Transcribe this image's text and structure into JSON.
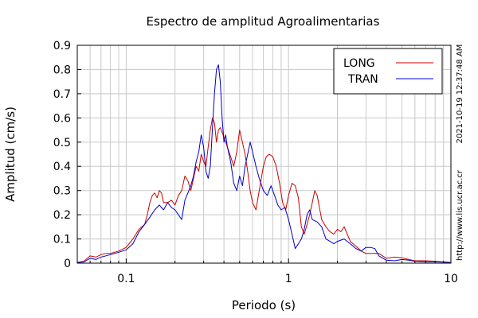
{
  "chart_data": {
    "type": "line",
    "title": "Espectro de amplitud Agroalimentarias",
    "xlabel": "Periodo (s)",
    "ylabel": "Amplitud (cm/s)",
    "x_scale": "log",
    "xlim": [
      0.05,
      10
    ],
    "ylim": [
      0,
      0.9
    ],
    "x_ticks": [
      {
        "v": 0.1,
        "label": "0.1"
      },
      {
        "v": 1,
        "label": "1"
      },
      {
        "v": 10,
        "label": "10"
      }
    ],
    "y_ticks": [
      {
        "v": 0,
        "label": "0"
      },
      {
        "v": 0.1,
        "label": "0.1"
      },
      {
        "v": 0.2,
        "label": "0.2"
      },
      {
        "v": 0.3,
        "label": "0.3"
      },
      {
        "v": 0.4,
        "label": "0.4"
      },
      {
        "v": 0.5,
        "label": "0.5"
      },
      {
        "v": 0.6,
        "label": "0.6"
      },
      {
        "v": 0.7,
        "label": "0.7"
      },
      {
        "v": 0.8,
        "label": "0.8"
      },
      {
        "v": 0.9,
        "label": "0.9"
      }
    ],
    "grid": true,
    "legend_position": "top-right",
    "timestamp": "2021-10-19 12:37:48 AM",
    "source_url": "http://www.lis.ucr.ac.cr",
    "series": [
      {
        "name": "LONG",
        "color": "#cc0000",
        "points": [
          [
            0.05,
            0.003
          ],
          [
            0.055,
            0.008
          ],
          [
            0.06,
            0.03
          ],
          [
            0.065,
            0.025
          ],
          [
            0.07,
            0.035
          ],
          [
            0.075,
            0.04
          ],
          [
            0.08,
            0.04
          ],
          [
            0.09,
            0.05
          ],
          [
            0.1,
            0.065
          ],
          [
            0.11,
            0.1
          ],
          [
            0.12,
            0.14
          ],
          [
            0.13,
            0.16
          ],
          [
            0.135,
            0.2
          ],
          [
            0.14,
            0.25
          ],
          [
            0.145,
            0.28
          ],
          [
            0.15,
            0.29
          ],
          [
            0.155,
            0.27
          ],
          [
            0.16,
            0.3
          ],
          [
            0.165,
            0.29
          ],
          [
            0.17,
            0.25
          ],
          [
            0.18,
            0.25
          ],
          [
            0.19,
            0.26
          ],
          [
            0.2,
            0.24
          ],
          [
            0.21,
            0.28
          ],
          [
            0.22,
            0.3
          ],
          [
            0.23,
            0.36
          ],
          [
            0.24,
            0.34
          ],
          [
            0.25,
            0.3
          ],
          [
            0.26,
            0.35
          ],
          [
            0.27,
            0.4
          ],
          [
            0.28,
            0.38
          ],
          [
            0.29,
            0.45
          ],
          [
            0.3,
            0.42
          ],
          [
            0.31,
            0.4
          ],
          [
            0.32,
            0.48
          ],
          [
            0.33,
            0.55
          ],
          [
            0.34,
            0.6
          ],
          [
            0.35,
            0.58
          ],
          [
            0.36,
            0.5
          ],
          [
            0.37,
            0.55
          ],
          [
            0.38,
            0.56
          ],
          [
            0.4,
            0.52
          ],
          [
            0.42,
            0.48
          ],
          [
            0.44,
            0.44
          ],
          [
            0.46,
            0.4
          ],
          [
            0.48,
            0.46
          ],
          [
            0.5,
            0.55
          ],
          [
            0.52,
            0.5
          ],
          [
            0.54,
            0.45
          ],
          [
            0.56,
            0.38
          ],
          [
            0.58,
            0.3
          ],
          [
            0.6,
            0.25
          ],
          [
            0.63,
            0.22
          ],
          [
            0.66,
            0.3
          ],
          [
            0.7,
            0.4
          ],
          [
            0.73,
            0.44
          ],
          [
            0.76,
            0.45
          ],
          [
            0.8,
            0.44
          ],
          [
            0.84,
            0.4
          ],
          [
            0.88,
            0.33
          ],
          [
            0.92,
            0.25
          ],
          [
            0.96,
            0.22
          ],
          [
            1,
            0.28
          ],
          [
            1.05,
            0.33
          ],
          [
            1.1,
            0.32
          ],
          [
            1.15,
            0.27
          ],
          [
            1.2,
            0.15
          ],
          [
            1.25,
            0.12
          ],
          [
            1.3,
            0.16
          ],
          [
            1.35,
            0.2
          ],
          [
            1.4,
            0.25
          ],
          [
            1.45,
            0.3
          ],
          [
            1.5,
            0.28
          ],
          [
            1.6,
            0.18
          ],
          [
            1.7,
            0.15
          ],
          [
            1.8,
            0.13
          ],
          [
            1.9,
            0.12
          ],
          [
            2,
            0.14
          ],
          [
            2.1,
            0.13
          ],
          [
            2.2,
            0.15
          ],
          [
            2.3,
            0.12
          ],
          [
            2.4,
            0.09
          ],
          [
            2.6,
            0.07
          ],
          [
            2.8,
            0.05
          ],
          [
            3,
            0.04
          ],
          [
            3.3,
            0.04
          ],
          [
            3.6,
            0.04
          ],
          [
            4,
            0.02
          ],
          [
            4.5,
            0.025
          ],
          [
            5,
            0.022
          ],
          [
            5.5,
            0.015
          ],
          [
            6,
            0.01
          ],
          [
            7,
            0.01
          ],
          [
            8,
            0.008
          ],
          [
            9,
            0.005
          ],
          [
            10,
            0.003
          ]
        ]
      },
      {
        "name": "TRAN",
        "color": "#0000cc",
        "points": [
          [
            0.05,
            0.003
          ],
          [
            0.055,
            0.005
          ],
          [
            0.06,
            0.02
          ],
          [
            0.065,
            0.015
          ],
          [
            0.07,
            0.025
          ],
          [
            0.08,
            0.035
          ],
          [
            0.09,
            0.045
          ],
          [
            0.1,
            0.055
          ],
          [
            0.11,
            0.08
          ],
          [
            0.12,
            0.13
          ],
          [
            0.13,
            0.16
          ],
          [
            0.14,
            0.19
          ],
          [
            0.15,
            0.22
          ],
          [
            0.16,
            0.24
          ],
          [
            0.17,
            0.22
          ],
          [
            0.18,
            0.25
          ],
          [
            0.19,
            0.23
          ],
          [
            0.2,
            0.22
          ],
          [
            0.21,
            0.2
          ],
          [
            0.22,
            0.18
          ],
          [
            0.23,
            0.26
          ],
          [
            0.24,
            0.29
          ],
          [
            0.25,
            0.32
          ],
          [
            0.26,
            0.36
          ],
          [
            0.27,
            0.42
          ],
          [
            0.28,
            0.46
          ],
          [
            0.29,
            0.53
          ],
          [
            0.3,
            0.48
          ],
          [
            0.31,
            0.38
          ],
          [
            0.32,
            0.35
          ],
          [
            0.33,
            0.4
          ],
          [
            0.34,
            0.56
          ],
          [
            0.35,
            0.7
          ],
          [
            0.36,
            0.8
          ],
          [
            0.37,
            0.82
          ],
          [
            0.38,
            0.75
          ],
          [
            0.39,
            0.6
          ],
          [
            0.4,
            0.5
          ],
          [
            0.41,
            0.53
          ],
          [
            0.42,
            0.48
          ],
          [
            0.44,
            0.42
          ],
          [
            0.46,
            0.33
          ],
          [
            0.48,
            0.3
          ],
          [
            0.5,
            0.36
          ],
          [
            0.52,
            0.32
          ],
          [
            0.54,
            0.4
          ],
          [
            0.56,
            0.45
          ],
          [
            0.58,
            0.5
          ],
          [
            0.6,
            0.46
          ],
          [
            0.63,
            0.4
          ],
          [
            0.66,
            0.35
          ],
          [
            0.7,
            0.3
          ],
          [
            0.74,
            0.28
          ],
          [
            0.78,
            0.32
          ],
          [
            0.82,
            0.28
          ],
          [
            0.86,
            0.24
          ],
          [
            0.9,
            0.22
          ],
          [
            0.95,
            0.23
          ],
          [
            1,
            0.18
          ],
          [
            1.05,
            0.12
          ],
          [
            1.1,
            0.06
          ],
          [
            1.15,
            0.08
          ],
          [
            1.2,
            0.1
          ],
          [
            1.25,
            0.14
          ],
          [
            1.3,
            0.2
          ],
          [
            1.35,
            0.22
          ],
          [
            1.4,
            0.18
          ],
          [
            1.5,
            0.17
          ],
          [
            1.6,
            0.15
          ],
          [
            1.7,
            0.1
          ],
          [
            1.8,
            0.09
          ],
          [
            1.9,
            0.08
          ],
          [
            2,
            0.09
          ],
          [
            2.2,
            0.1
          ],
          [
            2.4,
            0.08
          ],
          [
            2.6,
            0.06
          ],
          [
            2.8,
            0.05
          ],
          [
            3,
            0.065
          ],
          [
            3.2,
            0.065
          ],
          [
            3.4,
            0.06
          ],
          [
            3.6,
            0.03
          ],
          [
            4,
            0.012
          ],
          [
            4.5,
            0.01
          ],
          [
            5,
            0.015
          ],
          [
            5.5,
            0.012
          ],
          [
            6,
            0.008
          ],
          [
            7,
            0.006
          ],
          [
            8,
            0.006
          ],
          [
            9,
            0.004
          ],
          [
            10,
            0.003
          ]
        ]
      }
    ]
  }
}
